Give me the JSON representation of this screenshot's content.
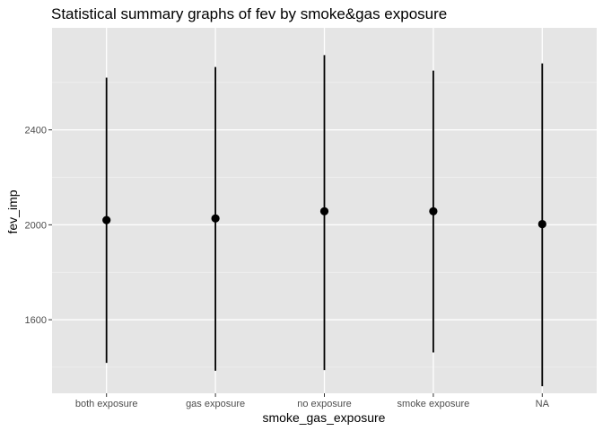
{
  "chart_data": {
    "type": "pointrange",
    "title": "Statistical summary graphs of fev by smoke&gas exposure",
    "xlabel": "smoke_gas_exposure",
    "ylabel": "fev_imp",
    "categories": [
      "both exposure",
      "gas exposure",
      "no exposure",
      "smoke exposure",
      "NA"
    ],
    "y_ticks": [
      1600,
      2000,
      2400
    ],
    "ylim": [
      1290,
      2830
    ],
    "grid": true,
    "legend": "none",
    "series": [
      {
        "mean": [
          2020,
          2027,
          2057,
          2057,
          2003
        ],
        "lower": [
          1418,
          1385,
          1388,
          1462,
          1320
        ],
        "upper": [
          2620,
          2665,
          2715,
          2650,
          2680
        ]
      }
    ],
    "colors": {
      "panel_background": "#e5e5e5",
      "grid_major": "#ffffff",
      "grid_minor": "#f2f2f2",
      "mark": "#000000",
      "tick_text": "#4d4d4d",
      "tick_mark": "#333333"
    }
  }
}
